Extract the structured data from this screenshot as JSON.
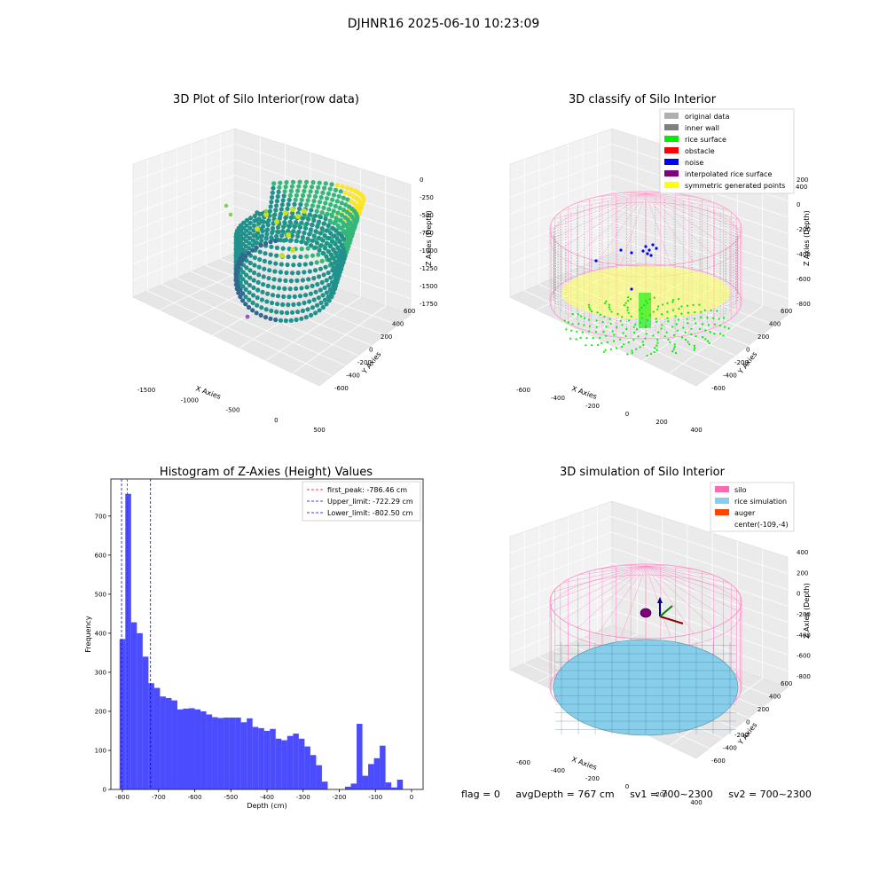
{
  "figure": {
    "title": "DJHNR16 2025-06-10 10:23:09"
  },
  "panel_raw": {
    "title": "3D Plot of Silo Interior(row data)",
    "xlabel": "X Axies",
    "ylabel": "Y Axies",
    "zlabel": "Z Axies (Depth)",
    "xticks": [
      "-1500",
      "-1000",
      "-500",
      "0",
      "500"
    ],
    "yticks": [
      "600",
      "400",
      "200",
      "0",
      "-200",
      "-400",
      "-600"
    ],
    "zticks": [
      "0",
      "-250",
      "-500",
      "-750",
      "-1000",
      "-1250",
      "-1500",
      "-1750"
    ],
    "colormap": [
      "#440154",
      "#31688e",
      "#21918c",
      "#35b779",
      "#fde725"
    ]
  },
  "panel_classify": {
    "title": "3D classify of Silo Interior",
    "xlabel": "X Axies",
    "ylabel": "Y Axies",
    "zlabel": "Z Axies (Depth)",
    "xticks": [
      "-600",
      "-400",
      "-200",
      "0",
      "200",
      "400"
    ],
    "yticks": [
      "600",
      "400",
      "200",
      "0",
      "-200",
      "-400",
      "-600"
    ],
    "zticks": [
      "200",
      "0",
      "-200",
      "-400",
      "-600",
      "-800"
    ],
    "ztick_top": "400",
    "legend": [
      {
        "label": "original data",
        "color": "#b0b0b0"
      },
      {
        "label": "inner wall",
        "color": "#808080"
      },
      {
        "label": "rice surface",
        "color": "#00ee00"
      },
      {
        "label": "obstacle",
        "color": "#ff0000"
      },
      {
        "label": "noise",
        "color": "#0000ff"
      },
      {
        "label": "interpolated rice surface",
        "color": "#800080"
      },
      {
        "label": "symmetric generated points",
        "color": "#ffff00"
      }
    ]
  },
  "panel_sim": {
    "title": "3D simulation of Silo Interior",
    "xlabel": "X Axies",
    "ylabel": "Y Axies",
    "zlabel": "Z Axies (Depth)",
    "xticks": [
      "-600",
      "-400",
      "-200",
      "0",
      "200",
      "400"
    ],
    "yticks": [
      "600",
      "400",
      "200",
      "0",
      "-200",
      "-400",
      "-600"
    ],
    "zticks": [
      "400",
      "200",
      "0",
      "-200",
      "-400",
      "-600",
      "-800"
    ],
    "legend": [
      {
        "label": "silo",
        "color": "#ff69b4"
      },
      {
        "label": "rice simulation",
        "color": "#87ceeb"
      },
      {
        "label": "auger",
        "color": "#ff4500"
      },
      {
        "label": "center(-109,-4)",
        "color": ""
      }
    ]
  },
  "chart_data": {
    "type": "bar",
    "title": "Histogram of Z-Axies (Height) Values",
    "xlabel": "Depth (cm)",
    "ylabel": "Frequency",
    "xlim": [
      -832,
      32
    ],
    "ylim": [
      0,
      795
    ],
    "bin_width": 16,
    "bar_color": "#0000ff",
    "xticks": [
      -800,
      -700,
      -600,
      -500,
      -400,
      -300,
      -200,
      -100,
      0
    ],
    "yticks": [
      0,
      100,
      200,
      300,
      400,
      500,
      600,
      700
    ],
    "bins_start": [
      -808,
      -792,
      -776,
      -760,
      -744,
      -728,
      -712,
      -696,
      -680,
      -664,
      -648,
      -632,
      -616,
      -600,
      -584,
      -568,
      -552,
      -536,
      -520,
      -504,
      -488,
      -472,
      -456,
      -440,
      -424,
      -408,
      -392,
      -376,
      -360,
      -344,
      -328,
      -312,
      -296,
      -280,
      -264,
      -248,
      -232,
      -216,
      -200,
      -184,
      -168,
      -152,
      -136,
      -120,
      -104,
      -88,
      -72,
      -56,
      -40,
      -24,
      -8
    ],
    "values": [
      385,
      757,
      428,
      400,
      340,
      272,
      260,
      238,
      234,
      228,
      205,
      207,
      208,
      205,
      200,
      192,
      185,
      183,
      184,
      184,
      184,
      172,
      182,
      160,
      157,
      150,
      155,
      130,
      126,
      137,
      143,
      130,
      110,
      88,
      62,
      20,
      0,
      0,
      0,
      7,
      15,
      168,
      35,
      65,
      80,
      112,
      18,
      5,
      25,
      0,
      0
    ],
    "lines": [
      {
        "label": "first_peak: -786.46 cm",
        "x": -786.46,
        "color": "#ff0000"
      },
      {
        "label": "Upper_limit: -722.29 cm",
        "x": -722.29,
        "color": "#0000ff"
      },
      {
        "label": "Lower_limit: -802.50 cm",
        "x": -802.5,
        "color": "#0000ff"
      }
    ],
    "legend_position": "upper-right",
    "grid": false
  },
  "footer": {
    "flag": "flag = 0",
    "avg": "avgDepth = 767 cm",
    "sv1": "sv1 = 700~2300",
    "sv2": "sv2 = 700~2300"
  }
}
